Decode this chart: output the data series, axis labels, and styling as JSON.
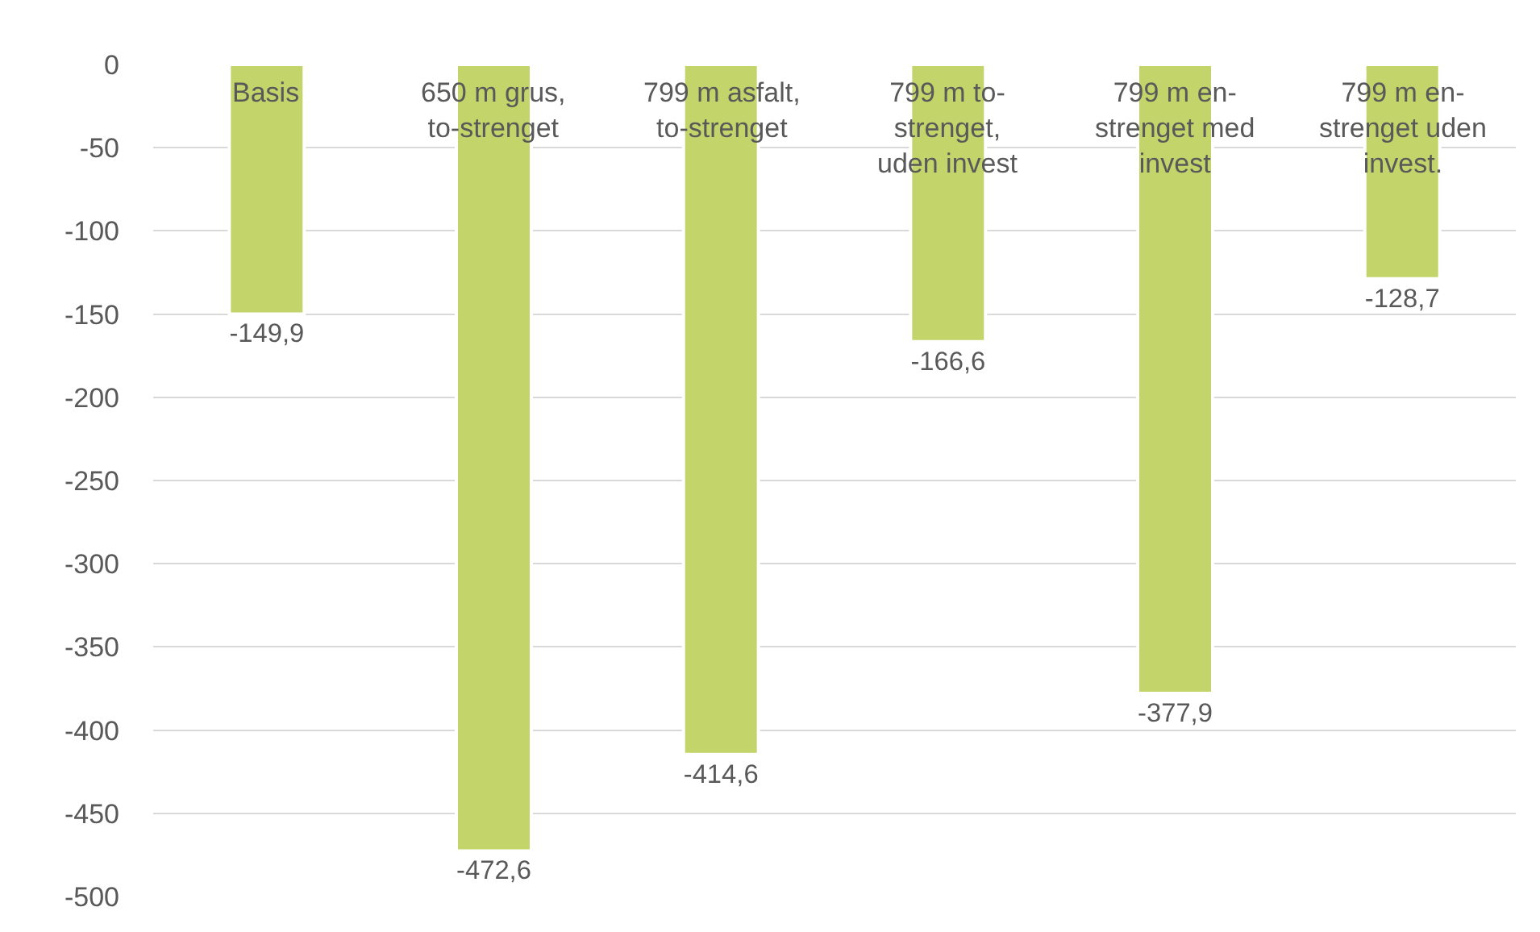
{
  "chart_data": {
    "type": "bar",
    "categories": [
      "Basis",
      "650 m grus, to-strenget",
      "799 m asfalt, to-strenget",
      "799 m to-strenget, uden invest",
      "799 m en-strenget med invest",
      "799 m en-strenget uden invest."
    ],
    "values": [
      -149.9,
      -472.6,
      -414.6,
      -166.6,
      -377.9,
      -128.7
    ],
    "value_labels": [
      "-149,9",
      "-472,6",
      "-414,6",
      "-166,6",
      "-377,9",
      "-128,7"
    ],
    "color": "#c3d46a",
    "ylim": [
      -500,
      0
    ],
    "yticks": [
      0,
      -50,
      -100,
      -150,
      -200,
      -250,
      -300,
      -350,
      -400,
      -450,
      -500
    ],
    "grid": "y"
  }
}
